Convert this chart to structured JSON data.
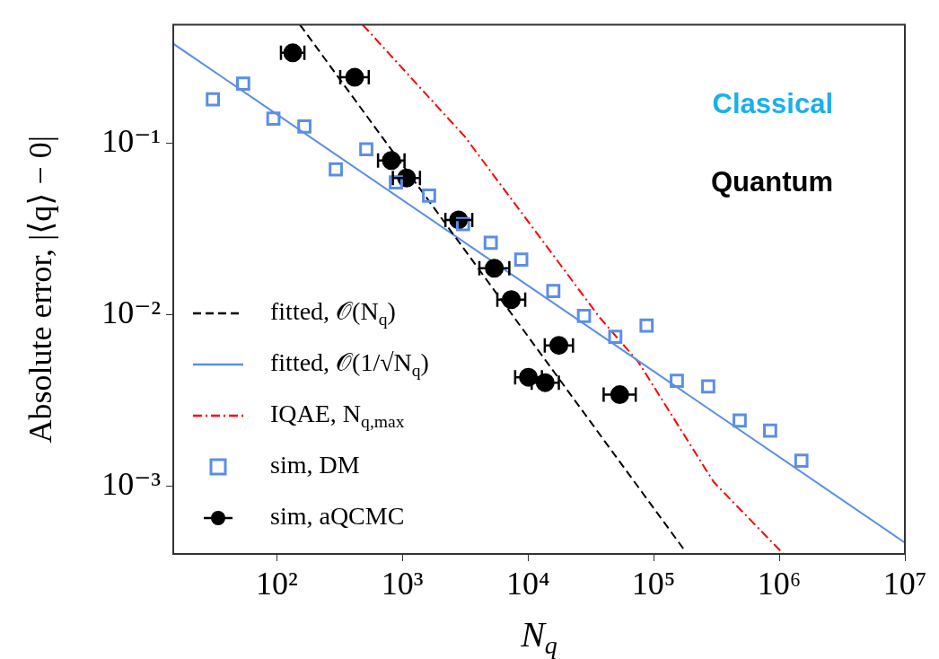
{
  "chart_data": {
    "type": "scatter",
    "xlabel": "N$_{q}$",
    "ylabel": "Absolute error, |⟨q⟩ − 0|",
    "log": "xy",
    "legend": "bottom left",
    "xlim": [
      15,
      10000000
    ],
    "ylim": [
      0.0004,
      0.49
    ],
    "xticks": [
      {
        "value": 100,
        "label": "10²"
      },
      {
        "value": 1000,
        "label": "10³"
      },
      {
        "value": 10000,
        "label": "10⁴"
      },
      {
        "value": 100000,
        "label": "10⁵"
      },
      {
        "value": 1000000,
        "label": "10⁶"
      },
      {
        "value": 10000000,
        "label": "10⁷"
      }
    ],
    "yticks": [
      {
        "value": 0.001,
        "label": "10⁻³"
      },
      {
        "value": 0.01,
        "label": "10⁻²"
      },
      {
        "value": 0.1,
        "label": "10⁻¹"
      }
    ],
    "annotations": [
      "Classical",
      "Quantum"
    ],
    "series": [
      {
        "name": "fitted, 𝒪(N$_{q}$)",
        "type": "line",
        "color": "#000000",
        "line_style": "dashed",
        "marker": "none",
        "x": [
          153,
          181000
        ],
        "values": [
          0.49,
          0.000409
        ]
      },
      {
        "name": "fitted, 𝒪(1/√N$_{q}$)",
        "type": "line",
        "color": "#5b8ee6",
        "line_style": "solid",
        "marker": "none",
        "x": [
          15,
          10000000
        ],
        "values": [
          0.38,
          0.000466
        ]
      },
      {
        "name": "IQAE, N$_{q,max}$",
        "type": "line",
        "color": "#ff0000",
        "line_style": "dashdot",
        "marker": "none",
        "x": [
          483,
          3140,
          37400,
          75900,
          301000,
          1080000
        ],
        "values": [
          0.49,
          0.109,
          0.00955,
          0.00525,
          0.00105,
          0.0004
        ]
      },
      {
        "name": "sim, DM",
        "color": "#5b8ee6",
        "marker": "square",
        "x": [
          31,
          54,
          94,
          166,
          295,
          516,
          888,
          1630,
          3040,
          5050,
          8830,
          15900,
          27900,
          49500,
          87900,
          153000,
          272000,
          484000,
          846000,
          1500000
        ],
        "values": [
          0.18,
          0.222,
          0.139,
          0.125,
          0.0703,
          0.092,
          0.0589,
          0.0494,
          0.0336,
          0.0262,
          0.0209,
          0.0137,
          0.0098,
          0.0074,
          0.0086,
          0.0041,
          0.0038,
          0.0024,
          0.0021,
          0.0014
        ]
      },
      {
        "name": "sim, aQCMC",
        "color": "#000000",
        "marker": "circle",
        "x": [
          134,
          417,
          817,
          1080,
          2800,
          5390,
          7360,
          17600,
          10070,
          13700,
          53700
        ],
        "values": [
          0.336,
          0.242,
          0.0791,
          0.0625,
          0.0356,
          0.0186,
          0.0122,
          0.0066,
          0.0043,
          0.004,
          0.0034
        ],
        "xerrors": [
          [
            108,
            166
          ],
          [
            320,
            540
          ],
          [
            640,
            1040
          ],
          [
            840,
            1380
          ],
          [
            2200,
            3600
          ],
          [
            4100,
            7100
          ],
          [
            5700,
            9500
          ],
          [
            13600,
            22800
          ],
          [
            7900,
            12900
          ],
          [
            10700,
            17600
          ],
          [
            40000,
            72000
          ]
        ]
      }
    ]
  }
}
